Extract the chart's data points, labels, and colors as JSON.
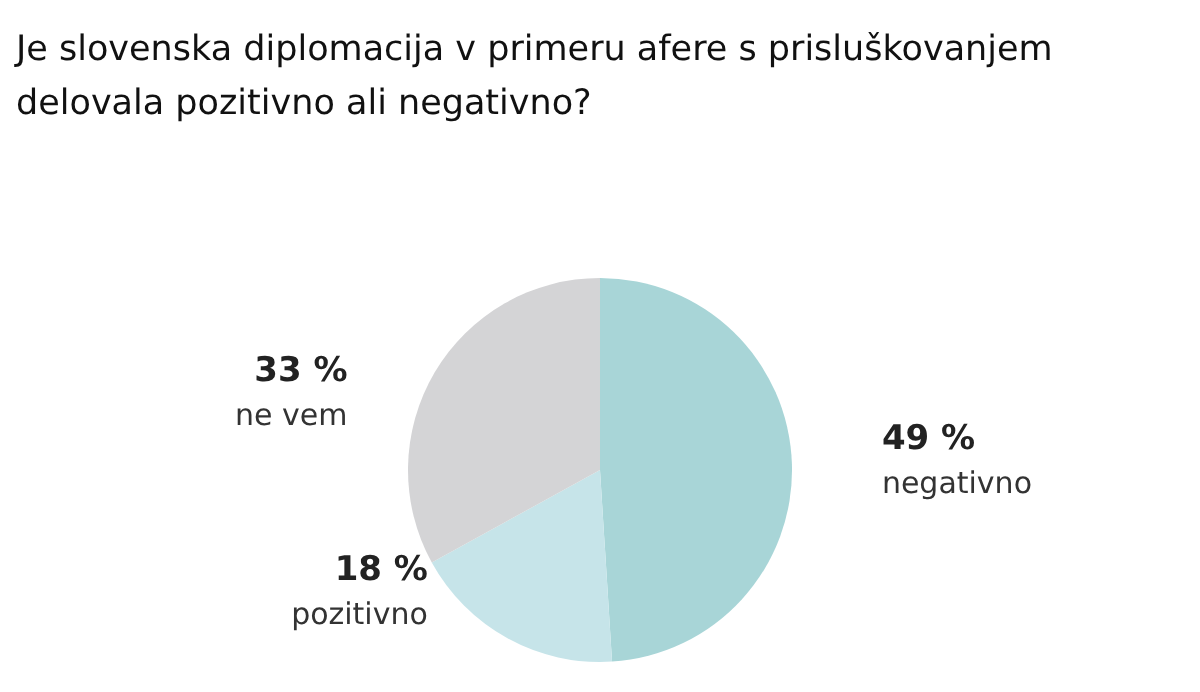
{
  "chart_data": {
    "type": "pie",
    "title": "Je slovenska diplomacija v primeru afere s prisluškovanjem delovala pozitivno ali negativno?",
    "categories": [
      "negativno",
      "pozitivno",
      "ne vem"
    ],
    "values": [
      49,
      18,
      33
    ],
    "value_labels": [
      "49 %",
      "18 %",
      "33 %"
    ],
    "colors": [
      "#a8d5d7",
      "#c6e4e9",
      "#d4d4d6"
    ]
  }
}
